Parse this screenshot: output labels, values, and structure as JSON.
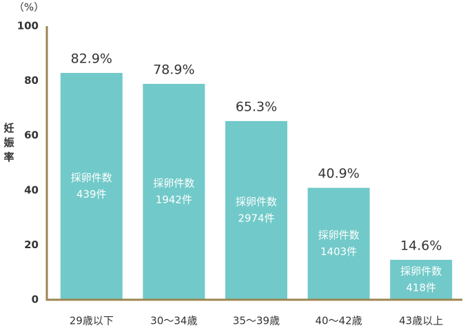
{
  "chart_data": {
    "type": "bar",
    "y_unit": "（%）",
    "ylabel": "妊娠率",
    "categories": [
      "29歳以下",
      "30～34歳",
      "35～39歳",
      "40～42歳",
      "43歳以上"
    ],
    "values": [
      82.9,
      78.9,
      65.3,
      40.9,
      14.6
    ],
    "value_labels": [
      "82.9%",
      "78.9%",
      "65.3%",
      "40.9%",
      "14.6%"
    ],
    "bar_labels": [
      [
        "採卵件数",
        "439件"
      ],
      [
        "採卵件数",
        "1942件"
      ],
      [
        "採卵件数",
        "2974件"
      ],
      [
        "採卵件数",
        "1403件"
      ],
      [
        "採卵件数",
        "418件"
      ]
    ],
    "color": "#72c9c9",
    "value_label_color": "#ad9550",
    "axis_color": "#9c8650",
    "ylim": [
      0,
      100
    ],
    "yticks": [
      0,
      20,
      40,
      60,
      80,
      100
    ],
    "grid": false
  }
}
